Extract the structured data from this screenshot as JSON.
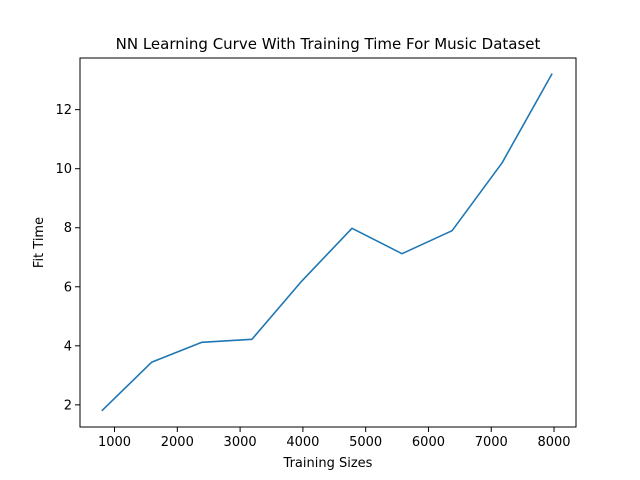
{
  "chart_data": {
    "type": "line",
    "title": "NN Learning Curve With Training Time For Music Dataset",
    "xlabel": "Training Sizes",
    "ylabel": "Fit Time",
    "xlim": [
      450,
      8350
    ],
    "ylim": [
      1.25,
      13.75
    ],
    "xticks": [
      1000,
      2000,
      3000,
      4000,
      5000,
      6000,
      7000,
      8000
    ],
    "yticks": [
      2,
      4,
      6,
      8,
      10,
      12
    ],
    "grid": false,
    "legend": "none",
    "series": [
      {
        "color": "#1f77b4",
        "x": [
          797,
          1594,
          2391,
          3188,
          3985,
          4782,
          5579,
          6376,
          7173,
          7970
        ],
        "y": [
          1.8,
          3.45,
          4.12,
          4.22,
          6.2,
          7.98,
          7.12,
          7.9,
          10.2,
          13.22
        ]
      }
    ]
  }
}
